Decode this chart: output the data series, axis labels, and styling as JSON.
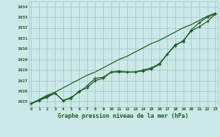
{
  "x": [
    0,
    1,
    2,
    3,
    4,
    5,
    6,
    7,
    8,
    9,
    10,
    11,
    12,
    13,
    14,
    15,
    16,
    17,
    18,
    19,
    20,
    21,
    22,
    23
  ],
  "line_straight": [
    1024.8,
    1025.2,
    1025.6,
    1025.9,
    1026.3,
    1026.7,
    1027.1,
    1027.5,
    1027.8,
    1028.2,
    1028.6,
    1029.0,
    1029.3,
    1029.7,
    1030.1,
    1030.5,
    1030.8,
    1031.2,
    1031.6,
    1032.0,
    1032.3,
    1032.7,
    1033.1,
    1033.4
  ],
  "line_plateau1": [
    1024.8,
    1025.1,
    1025.5,
    1025.8,
    1025.1,
    1025.4,
    1025.9,
    1026.5,
    1027.2,
    1027.3,
    1027.8,
    1027.8,
    1027.8,
    1027.8,
    1027.9,
    1028.1,
    1028.5,
    1029.5,
    1030.4,
    1030.7,
    1031.8,
    1032.5,
    1033.0,
    1033.3
  ],
  "line_plateau2": [
    1024.8,
    1025.1,
    1025.4,
    1025.8,
    1025.1,
    1025.3,
    1026.0,
    1026.3,
    1027.0,
    1027.2,
    1027.8,
    1027.9,
    1027.8,
    1027.8,
    1028.0,
    1028.2,
    1028.6,
    1029.5,
    1030.3,
    1030.8,
    1031.7,
    1032.1,
    1032.6,
    1033.3
  ],
  "ylim": [
    1024.5,
    1034.5
  ],
  "yticks": [
    1025,
    1026,
    1027,
    1028,
    1029,
    1030,
    1031,
    1032,
    1033,
    1034
  ],
  "xticks": [
    0,
    1,
    2,
    3,
    4,
    5,
    6,
    7,
    8,
    9,
    10,
    11,
    12,
    13,
    14,
    15,
    16,
    17,
    18,
    19,
    20,
    21,
    22,
    23
  ],
  "xlabel": "Graphe pression niveau de la mer (hPa)",
  "bg_color": "#cce8e8",
  "grid_color": "#99cccc",
  "line_color": "#1a5c1a",
  "figsize": [
    3.2,
    2.0
  ],
  "dpi": 100
}
